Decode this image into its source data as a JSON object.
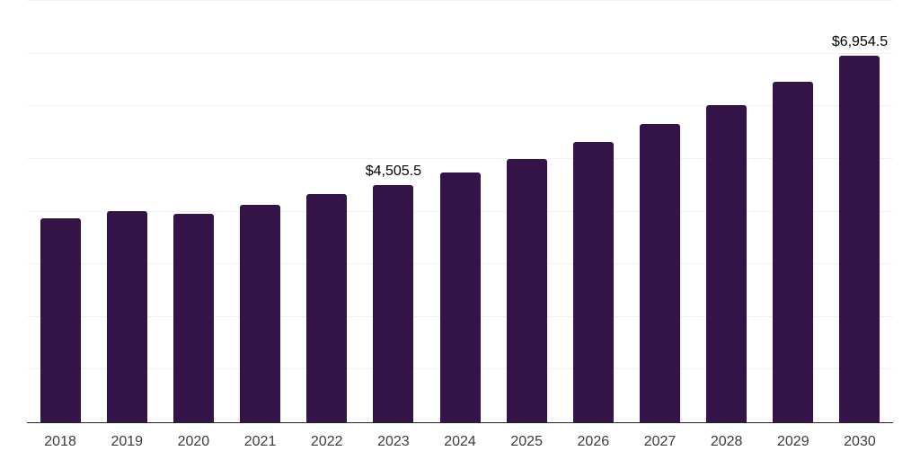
{
  "chart_data": {
    "type": "bar",
    "title": "",
    "xlabel": "",
    "ylabel": "",
    "categories": [
      "2018",
      "2019",
      "2020",
      "2021",
      "2022",
      "2023",
      "2024",
      "2025",
      "2026",
      "2027",
      "2028",
      "2029",
      "2030"
    ],
    "values": [
      3878,
      4009,
      3953,
      4123,
      4333,
      4505.5,
      4746,
      5003,
      5317,
      5658,
      6027,
      6465,
      6954.5
    ],
    "data_labels": [
      "",
      "",
      "",
      "",
      "",
      "$4,505.5",
      "",
      "",
      "",
      "",
      "",
      "",
      "$6,954.5"
    ],
    "ylim": [
      0,
      8000
    ],
    "gridline_step": 1000,
    "grid": "horizontal",
    "legend_position": "none",
    "colors": {
      "bar": "#341349",
      "gridline": "#f1f1f1",
      "axis_line": "#262626",
      "tick_label": "#3c3c3c",
      "data_label": "#000000",
      "background": "#ffffff"
    }
  }
}
